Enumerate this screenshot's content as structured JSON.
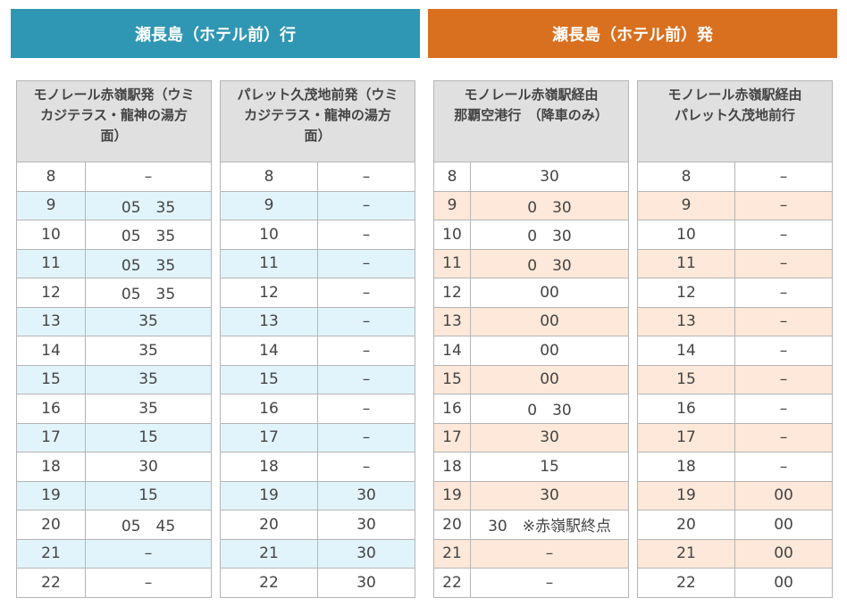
{
  "sections": [
    {
      "title": "瀬長島（ホテル前）行",
      "tables": [
        {
          "header": [
            "モノレール赤嶺駅発（ウミ",
            "カジテラス・龍神の湯方",
            "面）"
          ],
          "rows": [
            [
              "8",
              "–"
            ],
            [
              "9",
              "05　35"
            ],
            [
              "10",
              "05　35"
            ],
            [
              "11",
              "05　35"
            ],
            [
              "12",
              "05　35"
            ],
            [
              "13",
              "35"
            ],
            [
              "14",
              "35"
            ],
            [
              "15",
              "35"
            ],
            [
              "16",
              "35"
            ],
            [
              "17",
              "15"
            ],
            [
              "18",
              "30"
            ],
            [
              "19",
              "15"
            ],
            [
              "20",
              "05　45"
            ],
            [
              "21",
              "–"
            ],
            [
              "22",
              "–"
            ]
          ]
        },
        {
          "header": [
            "パレット久茂地前発（ウミ",
            "カジテラス・龍神の湯方",
            "面）"
          ],
          "rows": [
            [
              "8",
              "–"
            ],
            [
              "9",
              "–"
            ],
            [
              "10",
              "–"
            ],
            [
              "11",
              "–"
            ],
            [
              "12",
              "–"
            ],
            [
              "13",
              "–"
            ],
            [
              "14",
              "–"
            ],
            [
              "15",
              "–"
            ],
            [
              "16",
              "–"
            ],
            [
              "17",
              "–"
            ],
            [
              "18",
              "–"
            ],
            [
              "19",
              "30"
            ],
            [
              "20",
              "30"
            ],
            [
              "21",
              "30"
            ],
            [
              "22",
              "30"
            ]
          ]
        }
      ]
    },
    {
      "title": "瀬長島（ホテル前）発",
      "tables": [
        {
          "header": [
            "モノレール赤嶺駅経由",
            "那覇空港行　（降車のみ）"
          ],
          "rows": [
            [
              "8",
              "30"
            ],
            [
              "9",
              "0　30"
            ],
            [
              "10",
              "0　30"
            ],
            [
              "11",
              "0　30"
            ],
            [
              "12",
              "00"
            ],
            [
              "13",
              "00"
            ],
            [
              "14",
              "00"
            ],
            [
              "15",
              "00"
            ],
            [
              "16",
              "0　30"
            ],
            [
              "17",
              "30"
            ],
            [
              "18",
              "15"
            ],
            [
              "19",
              "30"
            ],
            [
              "20",
              "30　※赤嶺駅終点"
            ],
            [
              "21",
              "–"
            ],
            [
              "22",
              "–"
            ]
          ]
        },
        {
          "header": [
            "モノレール赤嶺駅経由",
            "パレット久茂地前行"
          ],
          "rows": [
            [
              "8",
              "–"
            ],
            [
              "9",
              "–"
            ],
            [
              "10",
              "–"
            ],
            [
              "11",
              "–"
            ],
            [
              "12",
              "–"
            ],
            [
              "13",
              "–"
            ],
            [
              "14",
              "–"
            ],
            [
              "15",
              "–"
            ],
            [
              "16",
              "–"
            ],
            [
              "17",
              "–"
            ],
            [
              "18",
              "–"
            ],
            [
              "19",
              "00"
            ],
            [
              "20",
              "00"
            ],
            [
              "21",
              "00"
            ],
            [
              "22",
              "00"
            ]
          ]
        }
      ]
    }
  ]
}
